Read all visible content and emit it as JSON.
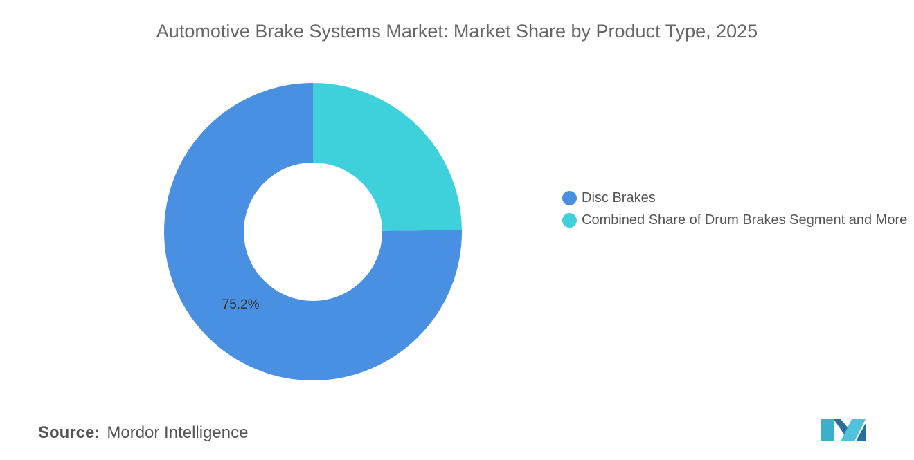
{
  "chart_data": {
    "type": "donut",
    "title": "Automotive Brake Systems Market: Market Share by Product Type, 2025",
    "categories": [
      "Disc Brakes",
      "Combined Share of Drum Brakes Segment and More"
    ],
    "values": [
      75.2,
      24.8
    ],
    "value_labels": [
      "75.2%",
      null
    ],
    "colors": [
      "#4a90e2",
      "#3fd1db"
    ],
    "legend": "right"
  },
  "source": {
    "label": "Source:",
    "text": "Mordor Intelligence"
  }
}
